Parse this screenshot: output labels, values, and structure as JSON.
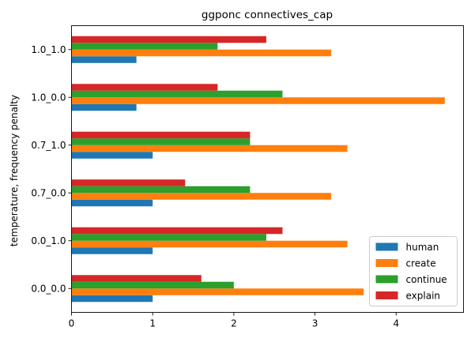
{
  "chart_data": {
    "type": "bar",
    "orientation": "horizontal",
    "title": "ggponc connectives_cap",
    "xlabel": "",
    "ylabel": "temperature, frequency penalty",
    "categories": [
      "0.0_0.0",
      "0.0_1.0",
      "0.7_0.0",
      "0.7_1.0",
      "1.0_0.0",
      "1.0_1.0"
    ],
    "xlim": [
      0,
      4.83
    ],
    "xticks": [
      0,
      1,
      2,
      3,
      4
    ],
    "grid": false,
    "legend_position": "lower right",
    "series": [
      {
        "name": "human",
        "color": "#1f77b4",
        "values": [
          1.0,
          1.0,
          1.0,
          1.0,
          0.8,
          0.8
        ]
      },
      {
        "name": "create",
        "color": "#ff7f0e",
        "values": [
          3.6,
          3.4,
          3.2,
          3.4,
          4.6,
          3.2
        ]
      },
      {
        "name": "continue",
        "color": "#2ca02c",
        "values": [
          2.0,
          2.4,
          2.2,
          2.2,
          2.6,
          1.8
        ]
      },
      {
        "name": "explain",
        "color": "#d62728",
        "values": [
          1.6,
          2.6,
          1.4,
          2.2,
          1.8,
          2.4
        ]
      }
    ]
  }
}
